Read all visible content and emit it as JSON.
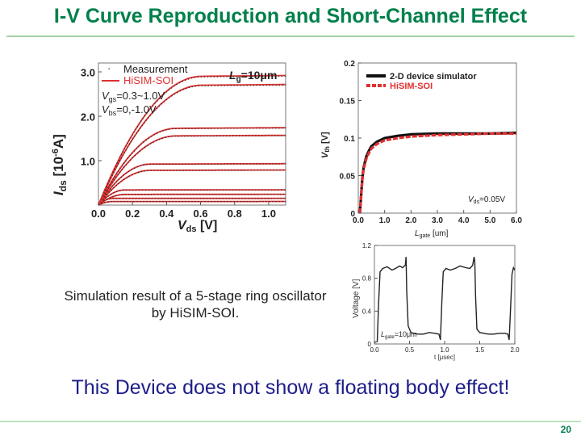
{
  "slide": {
    "title": "I-V Curve Reproduction and Short-Channel Effect",
    "caption_line1": "Simulation result of a 5-stage ring oscillator",
    "caption_line2": "by HiSIM-SOI.",
    "statement": "This Device does not show a floating body effect!",
    "page_number": "20"
  },
  "colors": {
    "title": "#00804a",
    "measurement": "#222222",
    "model": "#e03030",
    "statement": "#1d1d8a"
  },
  "chart_data": [
    {
      "type": "line",
      "xlabel_main": "V",
      "xlabel_sub": "ds",
      "xlabel_unit": " [V]",
      "ylabel_main": "I",
      "ylabel_sub": "ds",
      "ylabel_unit": " [10",
      "ylabel_exp": "-6",
      "ylabel_end": "A]",
      "xlim": [
        0.0,
        1.1
      ],
      "ylim": [
        0.0,
        3.2
      ],
      "xticks": [
        "0.0",
        "0.2",
        "0.4",
        "0.6",
        "0.8",
        "1.0"
      ],
      "xtick_values": [
        0.0,
        0.2,
        0.4,
        0.6,
        0.8,
        1.0
      ],
      "yticks": [
        "1.0",
        "2.0",
        "3.0"
      ],
      "ytick_values": [
        1.0,
        2.0,
        3.0
      ],
      "legend": [
        "Measurement",
        "HiSIM-SOI"
      ],
      "annotations": [
        {
          "main": "L",
          "sub": "g",
          "rest": "=10μm"
        },
        {
          "main": "V",
          "sub": "gs",
          "rest": "=0.3~1.0V"
        },
        {
          "main": "V",
          "sub": "bs",
          "rest": "=0,-1.0V"
        }
      ],
      "series": [
        {
          "vgs": 1.0,
          "vbs": 0,
          "isat": 2.88
        },
        {
          "vgs": 1.0,
          "vbs": -1.0,
          "isat": 2.68
        },
        {
          "vgs": 0.8,
          "vbs": 0,
          "isat": 1.72
        },
        {
          "vgs": 0.8,
          "vbs": -1.0,
          "isat": 1.55
        },
        {
          "vgs": 0.6,
          "vbs": 0,
          "isat": 0.92
        },
        {
          "vgs": 0.6,
          "vbs": -1.0,
          "isat": 0.78
        },
        {
          "vgs": 0.4,
          "vbs": 0,
          "isat": 0.34
        },
        {
          "vgs": 0.4,
          "vbs": -1.0,
          "isat": 0.24
        },
        {
          "vgs": 0.3,
          "vbs": 0,
          "isat": 0.15
        },
        {
          "vgs": 0.3,
          "vbs": -1.0,
          "isat": 0.08
        }
      ]
    },
    {
      "type": "line",
      "xlabel_main": "L",
      "xlabel_sub": "gate",
      "xlabel_unit": " [um]",
      "ylabel_main": "V",
      "ylabel_sub": "th",
      "ylabel_unit": " [V]",
      "xlim": [
        0.0,
        6.0
      ],
      "ylim": [
        0.0,
        0.2
      ],
      "xticks": [
        "0.0",
        "1.0",
        "2.0",
        "3.0",
        "4.0",
        "5.0",
        "6.0"
      ],
      "xtick_values": [
        0,
        1,
        2,
        3,
        4,
        5,
        6
      ],
      "yticks": [
        "0",
        "0.05",
        "0.1",
        "0.15",
        "0.2"
      ],
      "ytick_values": [
        0,
        0.05,
        0.1,
        0.15,
        0.2
      ],
      "legend": [
        "2-D device simulator",
        "HiSIM-SOI"
      ],
      "annotation": {
        "main": "V",
        "sub": "ds",
        "rest": "=0.05V"
      },
      "series": [
        {
          "name": "2-D device simulator",
          "x": [
            0.06,
            0.1,
            0.15,
            0.2,
            0.3,
            0.4,
            0.5,
            0.7,
            1.0,
            1.5,
            2.0,
            3.0,
            4.0,
            5.0,
            6.0
          ],
          "y": [
            0.0,
            0.02,
            0.045,
            0.06,
            0.075,
            0.083,
            0.089,
            0.095,
            0.1,
            0.103,
            0.105,
            0.106,
            0.106,
            0.106,
            0.107
          ]
        },
        {
          "name": "HiSIM-SOI",
          "x": [
            0.06,
            0.1,
            0.15,
            0.2,
            0.3,
            0.4,
            0.5,
            0.7,
            1.0,
            1.5,
            2.0,
            3.0,
            4.0,
            5.0,
            6.0
          ],
          "y": [
            0.0,
            0.02,
            0.043,
            0.058,
            0.072,
            0.08,
            0.086,
            0.092,
            0.097,
            0.1,
            0.102,
            0.104,
            0.105,
            0.106,
            0.106
          ]
        }
      ]
    },
    {
      "type": "line",
      "xlabel": "t [μsec]",
      "ylabel": "Voltage [V]",
      "xlim": [
        0.0,
        2.0
      ],
      "ylim": [
        0.0,
        1.2
      ],
      "xticks": [
        "0.0",
        "0.5",
        "1.0",
        "1.5",
        "2.0"
      ],
      "xtick_values": [
        0,
        0.5,
        1.0,
        1.5,
        2.0
      ],
      "yticks": [
        "0",
        "0.4",
        "0.8",
        "1.2"
      ],
      "ytick_values": [
        0,
        0.4,
        0.8,
        1.2
      ],
      "annotation": {
        "main": "L",
        "sub": "gate",
        "rest": "=10μm"
      },
      "series": [
        {
          "name": "ring oscillator output",
          "x": [
            0.0,
            0.04,
            0.06,
            0.08,
            0.12,
            0.18,
            0.25,
            0.3,
            0.36,
            0.4,
            0.44,
            0.45,
            0.46,
            0.48,
            0.52,
            0.56,
            0.62,
            0.7,
            0.78,
            0.86,
            0.92,
            0.94,
            0.96,
            0.98,
            1.02,
            1.08,
            1.15,
            1.22,
            1.3,
            1.36,
            1.4,
            1.42,
            1.43,
            1.44,
            1.46,
            1.5,
            1.56,
            1.62,
            1.7,
            1.78,
            1.86,
            1.9,
            1.92,
            1.94,
            1.96,
            1.98,
            2.0
          ],
          "y": [
            0.02,
            0.03,
            0.5,
            0.88,
            0.92,
            0.94,
            0.9,
            0.92,
            0.95,
            0.93,
            0.96,
            1.06,
            0.65,
            0.22,
            0.14,
            0.13,
            0.12,
            0.12,
            0.14,
            0.13,
            0.12,
            0.05,
            0.5,
            0.88,
            0.92,
            0.9,
            0.92,
            0.95,
            0.93,
            0.92,
            0.96,
            1.06,
            1.0,
            0.6,
            0.18,
            0.14,
            0.13,
            0.12,
            0.12,
            0.13,
            0.13,
            0.12,
            0.05,
            0.45,
            0.85,
            0.93,
            0.9
          ]
        }
      ]
    }
  ]
}
